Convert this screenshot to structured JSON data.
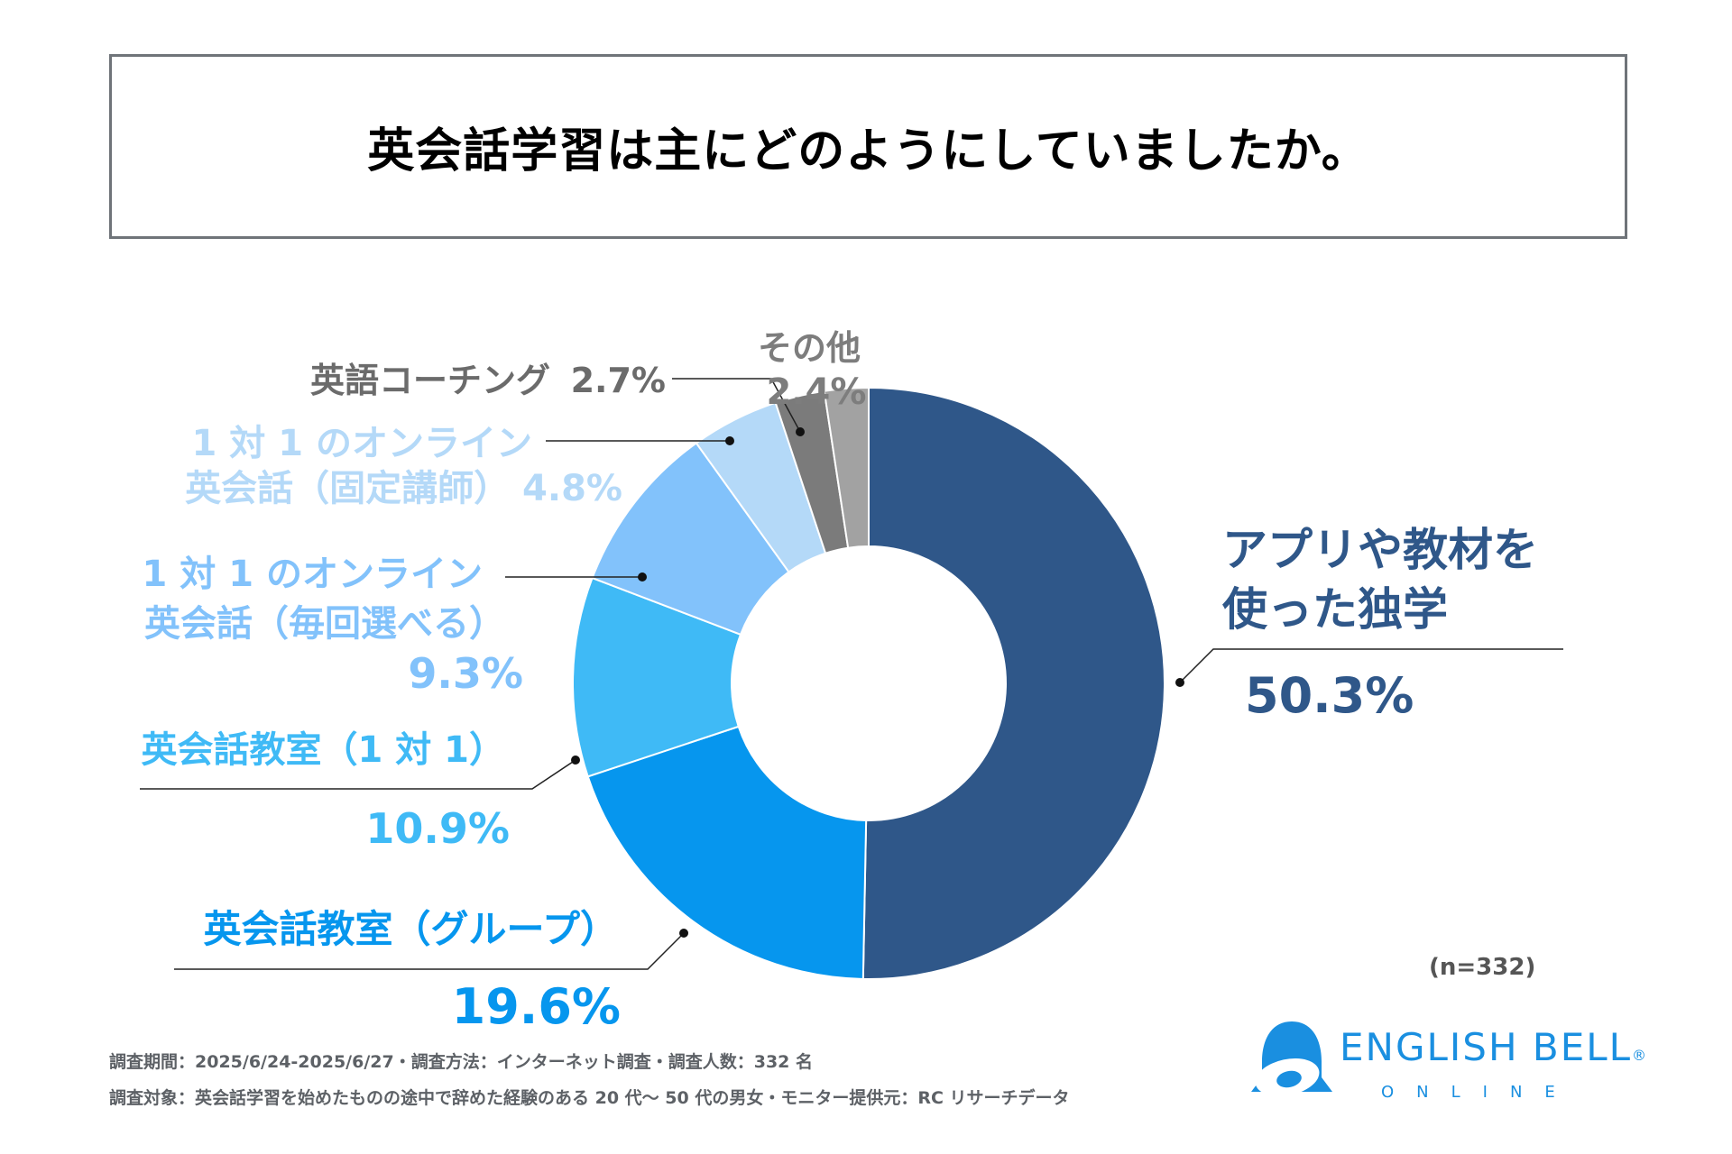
{
  "title": "英会話学習は主にどのようにしていましたか。",
  "n_label": "(n=332)",
  "footnotes": {
    "line1": "調査期間：2025/6/24-2025/6/27・調査方法：インターネット調査・調査人数：332 名",
    "line2": "調査対象：英会話学習を始めたものの途中で辞めた経験のある 20 代〜 50 代の男女・モニター提供元：RC リサーチデータ"
  },
  "logo": {
    "name": "ENGLISH BELL",
    "registered": "®",
    "sub": "ONLINE"
  },
  "chart_data": {
    "type": "pie",
    "donut": true,
    "title": "英会話学習は主にどのようにしていましたか。",
    "slices": [
      {
        "label_lines": [
          "アプリや教材を",
          "使った独学"
        ],
        "value": 50.3,
        "value_text": "50.3%",
        "color": "#2f5789"
      },
      {
        "label_lines": [
          "英会話教室（グループ）"
        ],
        "value": 19.6,
        "value_text": "19.6%",
        "color": "#0696ee"
      },
      {
        "label_lines": [
          "英会話教室（1 対 1）"
        ],
        "value": 10.9,
        "value_text": "10.9%",
        "color": "#3fbaf6"
      },
      {
        "label_lines": [
          "1 対 1 のオンライン",
          "英会話（毎回選べる）"
        ],
        "value": 9.3,
        "value_text": "9.3%",
        "color": "#82c2fb"
      },
      {
        "label_lines": [
          "1 対 1 のオンライン",
          "英会話（固定講師）"
        ],
        "value": 4.8,
        "value_text": "4.8%",
        "color": "#b4d9f8"
      },
      {
        "label_lines": [
          "英語コーチング"
        ],
        "value": 2.7,
        "value_text": "2.7%",
        "color": "#7b7b7b"
      },
      {
        "label_lines": [
          "その他"
        ],
        "value": 2.4,
        "value_text": "2.4%",
        "color": "#a2a2a2"
      }
    ],
    "label_colors": [
      "#2f5789",
      "#0696ee",
      "#3fbaf6",
      "#82c2fb",
      "#b4d9f8",
      "#6b6b6b",
      "#7d7d7d"
    ]
  }
}
